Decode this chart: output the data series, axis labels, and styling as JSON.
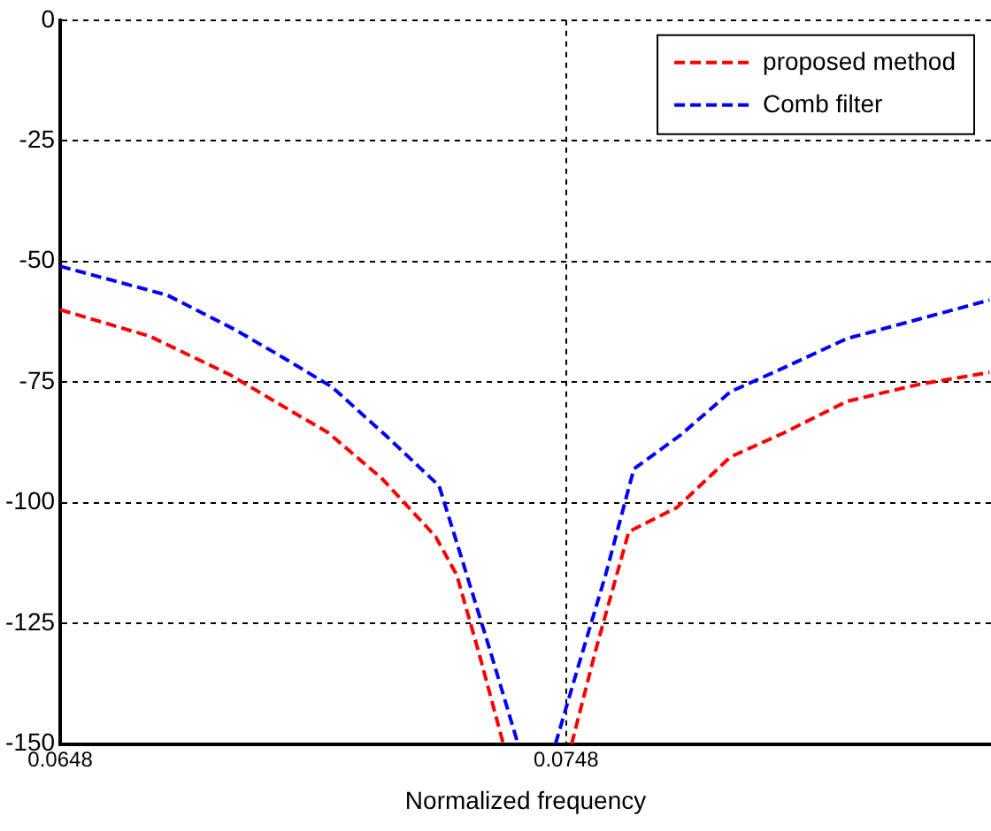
{
  "chart_data": {
    "type": "line",
    "xlabel": "Normalized frequency",
    "xlim": [
      0.0648,
      0.0832
    ],
    "xticks": [
      0.0648,
      0.0748
    ],
    "ylim": [
      -150,
      0
    ],
    "yticks": [
      -150,
      -125,
      -100,
      -75,
      -50,
      -25,
      0
    ],
    "grid": true,
    "legend": "top right",
    "line_style": "dashed",
    "marker": "none",
    "series": [
      {
        "name": "proposed method",
        "color": "#ff0000",
        "x": [
          0.0648,
          0.06657,
          0.06816,
          0.06904,
          0.0701,
          0.07116,
          0.07222,
          0.07264,
          0.0731,
          0.07356,
          null,
          0.07491,
          0.0754,
          0.07604,
          0.07699,
          0.07805,
          0.07911,
          0.08035,
          0.08176,
          0.08317
        ],
        "values": [
          -60,
          -65.5,
          -73.5,
          -79,
          -85.5,
          -95,
          -107,
          -115,
          -132,
          -150,
          null,
          -150,
          -130,
          -106,
          -101,
          -90.5,
          -85.5,
          -79,
          -75.5,
          -73
        ]
      },
      {
        "name": "Comb filter",
        "color": "#0000ff",
        "x": [
          0.0648,
          0.06692,
          0.06823,
          0.06922,
          0.07017,
          0.07123,
          0.07229,
          0.07275,
          0.07328,
          0.07385,
          null,
          0.07459,
          0.07505,
          0.07558,
          0.07614,
          0.07706,
          0.07805,
          0.07911,
          0.08035,
          0.08176,
          0.08317
        ],
        "values": [
          -51,
          -57,
          -64,
          -70,
          -76,
          -86,
          -96.5,
          -112,
          -130,
          -150,
          null,
          -150,
          -133.6,
          -115,
          -93,
          -86,
          -77,
          -72,
          -66,
          -62,
          -58
        ]
      }
    ]
  }
}
